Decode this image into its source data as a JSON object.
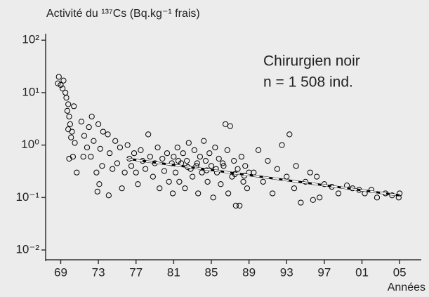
{
  "chart_data": {
    "type": "scatter",
    "title": "Activité du ¹³⁷Cs (Bq.kg⁻¹ frais)",
    "annotations": [
      "Chirurgien noir",
      "n = 1 508 ind."
    ],
    "x_label": "Années",
    "color": "#000000",
    "ylog": true,
    "xlim": [
      1967.4,
      2007.3
    ],
    "ylim": [
      0.0065,
      125
    ],
    "xticks": [
      {
        "value": 1969,
        "label": "69"
      },
      {
        "value": 1973,
        "label": "73"
      },
      {
        "value": 1977,
        "label": "77"
      },
      {
        "value": 1981,
        "label": "81"
      },
      {
        "value": 1985,
        "label": "85"
      },
      {
        "value": 1989,
        "label": "89"
      },
      {
        "value": 1993,
        "label": "93"
      },
      {
        "value": 1997,
        "label": "97"
      },
      {
        "value": 2001,
        "label": "01"
      },
      {
        "value": 2005,
        "label": "05"
      }
    ],
    "yticks": [
      {
        "value": 100,
        "label": "10²"
      },
      {
        "value": 10,
        "label": "10¹"
      },
      {
        "value": 1,
        "label": "10⁰"
      },
      {
        "value": 0.1,
        "label": "10⁻¹"
      },
      {
        "value": 0.01,
        "label": "10⁻²"
      }
    ],
    "x": [
      1968.8,
      1968.7,
      1969.0,
      1969.3,
      1969.2,
      1969.5,
      1969.6,
      1969.8,
      1969.7,
      1969.9,
      1970.0,
      1969.8,
      1970.2,
      1970.4,
      1970.1,
      1970.3,
      1969.9,
      1970.5,
      1970.7,
      1971.2,
      1971.5,
      1971.8,
      1971.4,
      1972.0,
      1972.3,
      1972.5,
      1972.2,
      1972.8,
      1973.0,
      1973.2,
      1973.5,
      1973.4,
      1973.1,
      1972.9,
      1974.0,
      1974.2,
      1974.5,
      1974.1,
      1974.8,
      1975.0,
      1975.3,
      1975.5,
      1975.8,
      1976.1,
      1976.3,
      1976.5,
      1976.8,
      1977.0,
      1977.2,
      1977.5,
      1977.7,
      1978.0,
      1978.3,
      1978.5,
      1978.8,
      1979.0,
      1979.3,
      1979.5,
      1979.8,
      1980.0,
      1980.3,
      1980.5,
      1980.8,
      1981.0,
      1981.2,
      1981.4,
      1981.6,
      1981.8,
      1982.0,
      1982.2,
      1982.4,
      1982.6,
      1982.8,
      1983.0,
      1983.2,
      1983.4,
      1983.6,
      1983.8,
      1984.0,
      1984.2,
      1984.4,
      1984.6,
      1984.8,
      1985.0,
      1985.2,
      1985.4,
      1985.6,
      1985.8,
      1986.0,
      1986.2,
      1986.5,
      1986.7,
      1987.0,
      1987.2,
      1987.4,
      1987.6,
      1987.8,
      1988.0,
      1988.2,
      1988.4,
      1988.6,
      1988.8,
      1989.0,
      1981.5,
      1983.5,
      1985.5,
      1987.5,
      1982.5,
      1984.5,
      1986.3,
      1988.5,
      1980.9,
      1986.8,
      1989.5,
      1990.0,
      1990.5,
      1991.0,
      1991.5,
      1992.0,
      1992.5,
      1993.0,
      1993.3,
      1993.8,
      1994.0,
      1994.5,
      1995.0,
      1995.5,
      1995.8,
      1996.2,
      1996.5,
      1997.0,
      1997.8,
      1998.5,
      1999.4,
      2000.0,
      2000.7,
      2001.3,
      2002.0,
      2002.6,
      2003.5,
      2004.2,
      2004.9,
      2005.0
    ],
    "values": [
      20,
      15,
      14,
      17,
      12,
      10,
      8,
      6,
      4.5,
      3.5,
      2.5,
      2,
      1.8,
      5.5,
      1.4,
      0.6,
      0.55,
      1.1,
      0.3,
      2.8,
      1.5,
      0.9,
      0.6,
      2.2,
      3.5,
      1.2,
      0.6,
      0.3,
      2.5,
      0.85,
      1.8,
      0.4,
      0.18,
      0.13,
      1.6,
      0.7,
      0.35,
      0.11,
      1.2,
      0.45,
      0.9,
      0.15,
      0.3,
      1.0,
      0.55,
      0.4,
      0.7,
      0.3,
      0.18,
      0.8,
      0.5,
      0.35,
      1.6,
      0.6,
      0.25,
      0.45,
      0.9,
      0.15,
      0.55,
      0.32,
      0.7,
      0.2,
      0.45,
      0.6,
      0.3,
      0.9,
      0.2,
      0.45,
      0.7,
      0.15,
      0.5,
      1.1,
      0.35,
      0.25,
      0.8,
      0.4,
      0.12,
      0.6,
      0.3,
      1.2,
      0.5,
      0.2,
      0.7,
      0.4,
      0.1,
      0.9,
      0.3,
      0.55,
      0.18,
      0.45,
      2.5,
      0.8,
      2.3,
      0.25,
      0.5,
      0.07,
      0.35,
      0.07,
      0.6,
      0.2,
      0.4,
      0.15,
      0.3,
      0.5,
      0.45,
      0.35,
      0.28,
      0.38,
      0.33,
      0.4,
      0.26,
      0.12,
      0.12,
      0.3,
      0.8,
      0.2,
      0.5,
      0.12,
      0.35,
      1.0,
      0.25,
      1.6,
      0.15,
      0.4,
      0.08,
      0.2,
      0.3,
      0.09,
      0.25,
      0.1,
      0.18,
      0.16,
      0.12,
      0.17,
      0.15,
      0.14,
      0.12,
      0.14,
      0.1,
      0.12,
      0.11,
      0.1,
      0.12
    ],
    "fit": {
      "x": [
        1976,
        2005
      ],
      "values": [
        0.55,
        0.11
      ]
    }
  }
}
